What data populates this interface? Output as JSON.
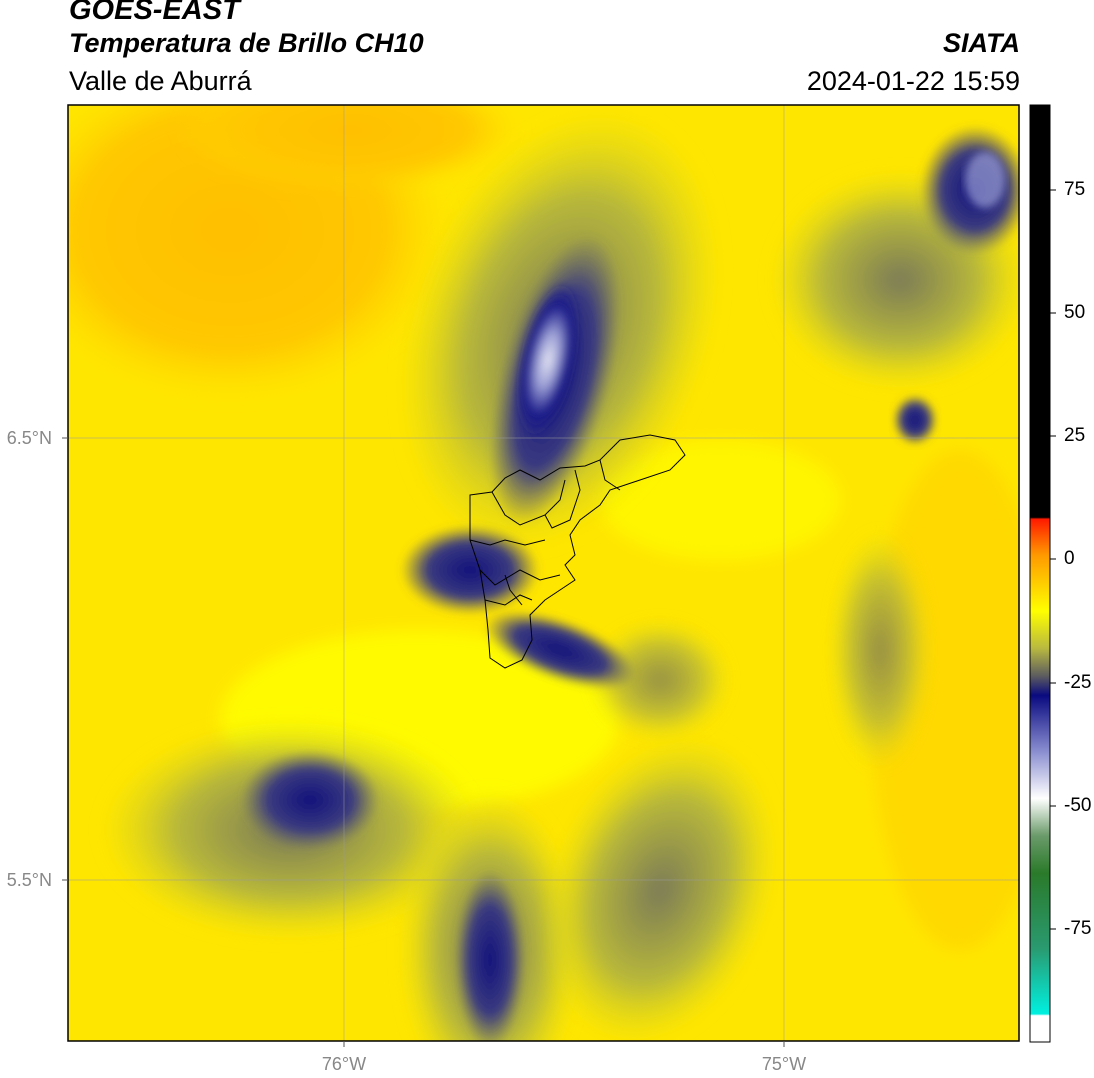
{
  "header": {
    "satellite": "GOES-EAST",
    "product": "Temperatura de Brillo CH10",
    "organization": "SIATA",
    "region": "Valle de Aburrá",
    "timestamp": "2024-01-22 15:59"
  },
  "map": {
    "lat_labels": [
      "6.5°N",
      "5.5°N"
    ],
    "lon_labels": [
      "76°W",
      "75°W"
    ],
    "grid": true
  },
  "colorbar": {
    "ticks": [
      "75",
      "50",
      "25",
      "0",
      "-25",
      "-50",
      "-75"
    ],
    "colors": {
      "black": "#000000",
      "red": "#ff1a00",
      "orange": "#ff9900",
      "yellow": "#ffff00",
      "olive": "#8a8a3a",
      "navy": "#0a0a80",
      "lavender": "#b0b4e0",
      "white": "#ffffff",
      "green": "#3a8a3a",
      "cyan": "#00f0e0"
    }
  }
}
